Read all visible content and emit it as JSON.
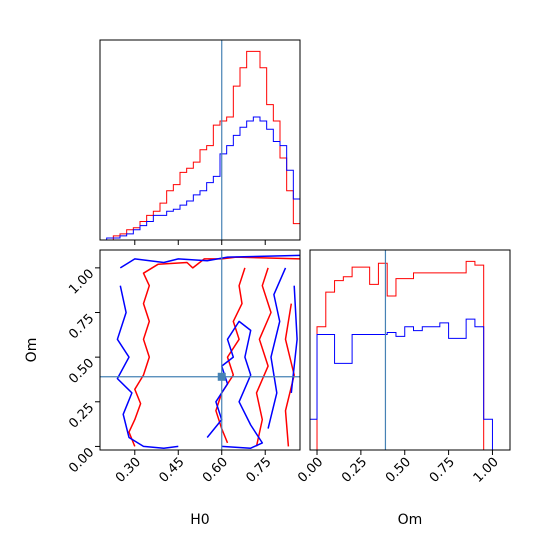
{
  "chart_data": {
    "type": "corner",
    "parameters": [
      "H0",
      "Om"
    ],
    "truth": {
      "H0": 0.6,
      "Om": 0.39
    },
    "colors": {
      "series_a": "#ff0000",
      "series_b": "#0000ff",
      "truth": "#4682b4"
    },
    "panels": [
      {
        "id": "hist-H0",
        "type": "histogram",
        "xlim": [
          0.18,
          0.87
        ],
        "bin_edges": [
          0.18,
          0.203,
          0.226,
          0.249,
          0.272,
          0.295,
          0.318,
          0.341,
          0.364,
          0.387,
          0.41,
          0.433,
          0.456,
          0.479,
          0.502,
          0.525,
          0.548,
          0.571,
          0.594,
          0.617,
          0.64,
          0.663,
          0.686,
          0.709,
          0.732,
          0.755,
          0.778,
          0.801,
          0.824,
          0.847,
          0.87
        ],
        "series": [
          {
            "color": "#ff0000",
            "counts": [
              0,
              0,
              2,
              3,
              5,
              6,
              9,
              12,
              14,
              18,
              24,
              27,
              33,
              35,
              38,
              44,
              46,
              56,
              58,
              60,
              75,
              84,
              92,
              92,
              84,
              66,
              58,
              40,
              24,
              8
            ]
          },
          {
            "color": "#0000ff",
            "counts": [
              0,
              1,
              1,
              2,
              3,
              5,
              7,
              9,
              12,
              12,
              14,
              15,
              17,
              19,
              22,
              24,
              28,
              31,
              42,
              46,
              51,
              55,
              58,
              60,
              58,
              54,
              48,
              46,
              34,
              20
            ]
          }
        ]
      },
      {
        "id": "hist-Om",
        "type": "histogram",
        "xlim": [
          -0.04,
          1.1
        ],
        "xticks": [
          "0.00",
          "0.25",
          "0.50",
          "0.75",
          "1.00"
        ],
        "xtick_values": [
          0,
          0.25,
          0.5,
          0.75,
          1.0
        ],
        "xlabel": "Om",
        "bin_edges": [
          -0.04,
          0.0,
          0.05,
          0.1,
          0.15,
          0.2,
          0.25,
          0.3,
          0.35,
          0.4,
          0.45,
          0.5,
          0.55,
          0.6,
          0.65,
          0.7,
          0.75,
          0.8,
          0.85,
          0.9,
          0.95,
          1.0,
          1.04
        ],
        "series": [
          {
            "color": "#ff0000",
            "counts": [
              0,
              64,
              82,
              88,
              90,
              95,
              95,
              86,
              97,
              80,
              89,
              89,
              92,
              92,
              92,
              92,
              92,
              92,
              98,
              96,
              0,
              0
            ]
          },
          {
            "color": "#0000ff",
            "counts": [
              16,
              60,
              60,
              45,
              45,
              60,
              60,
              60,
              60,
              61,
              59,
              64,
              62,
              64,
              64,
              66,
              58,
              58,
              68,
              64,
              16,
              0
            ]
          }
        ]
      },
      {
        "id": "contour-H0-Om",
        "type": "contour",
        "xlim": [
          0.18,
          0.87
        ],
        "ylim": [
          -0.02,
          1.1
        ],
        "xticks": [
          "0.30",
          "0.45",
          "0.60",
          "0.75"
        ],
        "xtick_values": [
          0.3,
          0.45,
          0.6,
          0.75
        ],
        "yticks": [
          "0.00",
          "0.25",
          "0.50",
          "0.75",
          "1.00"
        ],
        "ytick_values": [
          0,
          0.25,
          0.5,
          0.75,
          1.0
        ],
        "xlabel": "H0",
        "ylabel": "Om",
        "contours": [
          {
            "color": "#ff0000",
            "points": [
              [
                0.3,
                0.0
              ],
              [
                0.28,
                0.08
              ],
              [
                0.3,
                0.15
              ],
              [
                0.32,
                0.24
              ],
              [
                0.3,
                0.32
              ],
              [
                0.33,
                0.4
              ],
              [
                0.35,
                0.5
              ],
              [
                0.33,
                0.6
              ],
              [
                0.35,
                0.7
              ],
              [
                0.33,
                0.8
              ],
              [
                0.35,
                0.9
              ],
              [
                0.33,
                0.97
              ],
              [
                0.38,
                1.02
              ],
              [
                0.48,
                1.03
              ],
              [
                0.5,
                1.0
              ],
              [
                0.54,
                1.05
              ],
              [
                0.6,
                1.05
              ],
              [
                0.65,
                1.06
              ],
              [
                0.87,
                1.05
              ]
            ]
          },
          {
            "color": "#ff0000",
            "points": [
              [
                0.68,
                1.0
              ],
              [
                0.66,
                0.9
              ],
              [
                0.67,
                0.8
              ],
              [
                0.64,
                0.7
              ],
              [
                0.66,
                0.6
              ],
              [
                0.62,
                0.5
              ],
              [
                0.64,
                0.4
              ],
              [
                0.6,
                0.3
              ],
              [
                0.58,
                0.2
              ],
              [
                0.6,
                0.1
              ],
              [
                0.62,
                0.02
              ]
            ]
          },
          {
            "color": "#ff0000",
            "points": [
              [
                0.76,
                1.0
              ],
              [
                0.74,
                0.9
              ],
              [
                0.77,
                0.75
              ],
              [
                0.73,
                0.6
              ],
              [
                0.76,
                0.45
              ],
              [
                0.72,
                0.3
              ],
              [
                0.74,
                0.15
              ],
              [
                0.72,
                0.0
              ]
            ]
          },
          {
            "color": "#ff0000",
            "points": [
              [
                0.84,
                0.8
              ],
              [
                0.82,
                0.6
              ],
              [
                0.85,
                0.4
              ],
              [
                0.82,
                0.2
              ],
              [
                0.83,
                0.0
              ]
            ]
          },
          {
            "color": "#0000ff",
            "points": [
              [
                0.25,
                0.9
              ],
              [
                0.27,
                0.75
              ],
              [
                0.24,
                0.6
              ],
              [
                0.28,
                0.5
              ],
              [
                0.24,
                0.38
              ],
              [
                0.29,
                0.3
              ],
              [
                0.26,
                0.18
              ],
              [
                0.28,
                0.05
              ],
              [
                0.33,
                0.0
              ],
              [
                0.4,
                -0.01
              ],
              [
                0.45,
                0.0
              ]
            ]
          },
          {
            "color": "#0000ff",
            "points": [
              [
                0.25,
                1.0
              ],
              [
                0.3,
                1.05
              ],
              [
                0.4,
                1.03
              ],
              [
                0.45,
                1.05
              ],
              [
                0.55,
                1.04
              ],
              [
                0.62,
                1.06
              ],
              [
                0.87,
                1.07
              ]
            ]
          },
          {
            "color": "#0000ff",
            "points": [
              [
                0.55,
                0.05
              ],
              [
                0.6,
                0.15
              ],
              [
                0.58,
                0.25
              ],
              [
                0.62,
                0.35
              ],
              [
                0.6,
                0.45
              ],
              [
                0.64,
                0.5
              ],
              [
                0.62,
                0.6
              ],
              [
                0.66,
                0.7
              ],
              [
                0.7,
                0.65
              ],
              [
                0.68,
                0.5
              ],
              [
                0.7,
                0.4
              ],
              [
                0.66,
                0.25
              ],
              [
                0.7,
                0.12
              ],
              [
                0.74,
                0.02
              ],
              [
                0.7,
                -0.01
              ],
              [
                0.6,
                0.0
              ]
            ]
          },
          {
            "color": "#0000ff",
            "points": [
              [
                0.76,
                0.1
              ],
              [
                0.79,
                0.3
              ],
              [
                0.77,
                0.5
              ],
              [
                0.8,
                0.7
              ],
              [
                0.78,
                0.85
              ],
              [
                0.82,
                1.0
              ]
            ]
          },
          {
            "color": "#0000ff",
            "points": [
              [
                0.84,
                0.3
              ],
              [
                0.86,
                0.6
              ],
              [
                0.85,
                0.9
              ]
            ]
          }
        ]
      }
    ]
  }
}
